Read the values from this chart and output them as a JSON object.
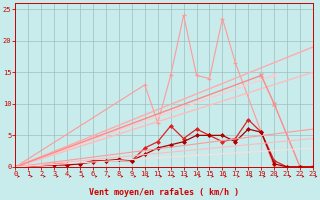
{
  "bg_color": "#c8ecec",
  "grid_color": "#9fbfbf",
  "xlabel": "Vent moyen/en rafales ( km/h )",
  "xlim": [
    0,
    23
  ],
  "ylim": [
    0,
    26
  ],
  "yticks": [
    0,
    5,
    10,
    15,
    20,
    25
  ],
  "xticks": [
    0,
    1,
    2,
    3,
    4,
    5,
    6,
    7,
    8,
    9,
    10,
    11,
    12,
    13,
    14,
    15,
    16,
    17,
    18,
    19,
    20,
    21,
    22,
    23
  ],
  "series": [
    {
      "x": [
        0,
        10,
        11,
        12,
        13,
        14,
        15,
        16,
        17,
        20,
        21,
        22,
        23
      ],
      "y": [
        0,
        13,
        7,
        14.5,
        24,
        14.5,
        14,
        23.5,
        16.5,
        0,
        0,
        0,
        0
      ],
      "color": "#ff9999",
      "lw": 0.8,
      "marker": "+",
      "ms": 3,
      "mew": 0.8
    },
    {
      "x": [
        0,
        23
      ],
      "y": [
        0,
        19
      ],
      "color": "#ffaaaa",
      "lw": 1.0,
      "marker": null,
      "ms": 0,
      "mew": 0
    },
    {
      "x": [
        0,
        23
      ],
      "y": [
        0,
        15
      ],
      "color": "#ffbbbb",
      "lw": 1.0,
      "marker": null,
      "ms": 0,
      "mew": 0
    },
    {
      "x": [
        0,
        20
      ],
      "y": [
        0,
        14.5
      ],
      "color": "#ffcccc",
      "lw": 1.0,
      "marker": "x",
      "ms": 3,
      "mew": 0.8
    },
    {
      "x": [
        0,
        19,
        20,
        22,
        23
      ],
      "y": [
        0,
        14.5,
        10,
        0,
        0
      ],
      "color": "#ff8888",
      "lw": 1.0,
      "marker": "x",
      "ms": 3,
      "mew": 0.8
    },
    {
      "x": [
        0,
        3,
        4,
        5,
        6,
        7,
        9,
        10,
        11,
        12,
        13,
        14,
        15,
        16,
        17,
        18,
        19,
        20,
        21,
        22,
        23
      ],
      "y": [
        0,
        0.5,
        0.5,
        0.5,
        1,
        1,
        1,
        3,
        4,
        6.5,
        4.5,
        6,
        5,
        4,
        4.5,
        7.5,
        5.5,
        1,
        0,
        0,
        0
      ],
      "color": "#dd2222",
      "lw": 0.9,
      "marker": "D",
      "ms": 2,
      "mew": 0.5
    },
    {
      "x": [
        0,
        3,
        4,
        5,
        6,
        7,
        8,
        9,
        10,
        11,
        12,
        13,
        14,
        15,
        16,
        17,
        18,
        19,
        20,
        21,
        22,
        23
      ],
      "y": [
        0,
        0.3,
        0.3,
        0.5,
        0.8,
        1,
        1.2,
        1,
        2,
        3,
        3.5,
        4,
        5,
        5,
        5,
        4,
        6,
        5.5,
        0.5,
        0,
        0,
        0
      ],
      "color": "#aa0000",
      "lw": 0.9,
      "marker": "D",
      "ms": 2,
      "mew": 0.5
    },
    {
      "x": [
        0,
        23
      ],
      "y": [
        0,
        6
      ],
      "color": "#ff9999",
      "lw": 0.8,
      "marker": null,
      "ms": 0,
      "mew": 0
    },
    {
      "x": [
        0,
        23
      ],
      "y": [
        0,
        4.5
      ],
      "color": "#ffbbbb",
      "lw": 0.8,
      "marker": null,
      "ms": 0,
      "mew": 0
    },
    {
      "x": [
        0,
        23
      ],
      "y": [
        0,
        3
      ],
      "color": "#ffdddd",
      "lw": 0.8,
      "marker": null,
      "ms": 0,
      "mew": 0
    }
  ],
  "arrow_color": "#cc0000",
  "axis_color": "#cc0000",
  "tick_color": "#cc0000",
  "label_color": "#cc0000"
}
